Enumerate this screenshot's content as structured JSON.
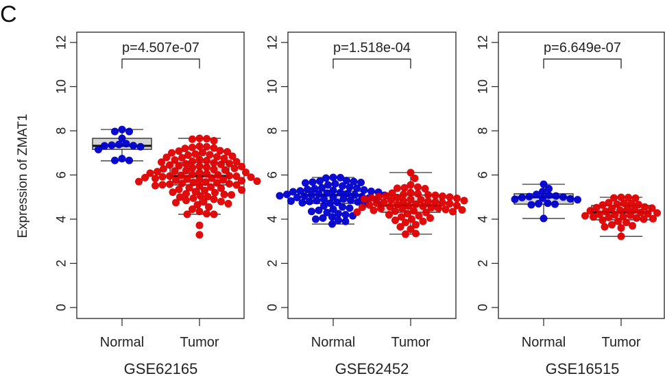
{
  "figure": {
    "panel_letter": "C",
    "ylabel": "Expression of ZMAT1"
  },
  "chart_data": [
    {
      "type": "box-beeswarm",
      "title": "",
      "dataset": "GSE62165",
      "xlabel": "GSE62165",
      "ylabel": "Expression of ZMAT1",
      "ylim": [
        0,
        12
      ],
      "yticks": [
        0,
        2,
        4,
        6,
        8,
        10,
        12
      ],
      "categories": [
        "Normal",
        "Tumor"
      ],
      "p_value_label": "p=4.507e-07",
      "groups": [
        {
          "name": "Normal",
          "color": "#0000cc",
          "box": {
            "whisker_low": 6.64,
            "q1": 7.16,
            "median": 7.32,
            "q3": 7.66,
            "whisker_high": 8.06
          },
          "values": [
            8.06,
            7.97,
            7.97,
            7.66,
            7.42,
            7.38,
            7.35,
            7.33,
            7.32,
            7.28,
            7.15,
            6.74,
            6.66,
            6.66
          ]
        },
        {
          "name": "Tumor",
          "color": "#dd0000",
          "box": {
            "whisker_low": 4.22,
            "q1": 5.55,
            "median": 5.95,
            "q3": 6.57,
            "whisker_high": 7.66
          },
          "outliers": [
            3.72,
            3.29
          ],
          "values": [
            7.66,
            7.64,
            7.62,
            7.55,
            7.3,
            7.28,
            7.25,
            7.22,
            7.2,
            7.1,
            7.08,
            7.05,
            7.02,
            7.0,
            6.95,
            6.92,
            6.9,
            6.85,
            6.82,
            6.8,
            6.78,
            6.75,
            6.7,
            6.68,
            6.65,
            6.62,
            6.6,
            6.58,
            6.55,
            6.52,
            6.5,
            6.48,
            6.45,
            6.42,
            6.4,
            6.38,
            6.35,
            6.32,
            6.3,
            6.28,
            6.25,
            6.22,
            6.2,
            6.18,
            6.15,
            6.12,
            6.1,
            6.08,
            6.05,
            6.02,
            6.0,
            5.98,
            5.96,
            5.95,
            5.94,
            5.92,
            5.9,
            5.88,
            5.86,
            5.84,
            5.82,
            5.8,
            5.78,
            5.76,
            5.74,
            5.72,
            5.7,
            5.68,
            5.66,
            5.64,
            5.62,
            5.6,
            5.58,
            5.56,
            5.55,
            5.52,
            5.5,
            5.45,
            5.42,
            5.4,
            5.35,
            5.32,
            5.3,
            5.25,
            5.22,
            5.2,
            5.15,
            5.12,
            5.1,
            5.05,
            5.02,
            5.0,
            4.95,
            4.9,
            4.85,
            4.8,
            4.78,
            4.75,
            4.7,
            4.65,
            4.55,
            4.45,
            4.35,
            4.25,
            4.22,
            4.22,
            3.72,
            3.29
          ]
        }
      ]
    },
    {
      "type": "box-beeswarm",
      "title": "",
      "dataset": "GSE62452",
      "xlabel": "GSE62452",
      "ylabel": "",
      "ylim": [
        0,
        12
      ],
      "yticks": [
        0,
        2,
        4,
        6,
        8,
        10,
        12
      ],
      "categories": [
        "Normal",
        "Tumor"
      ],
      "p_value_label": "p=1.518e-04",
      "groups": [
        {
          "name": "Normal",
          "color": "#0000cc",
          "box": {
            "whisker_low": 3.78,
            "q1": 4.71,
            "median": 5.09,
            "q3": 5.27,
            "whisker_high": 5.89
          },
          "values": [
            5.89,
            5.88,
            5.86,
            5.75,
            5.72,
            5.7,
            5.68,
            5.66,
            5.64,
            5.6,
            5.55,
            5.5,
            5.45,
            5.42,
            5.4,
            5.38,
            5.35,
            5.32,
            5.3,
            5.28,
            5.26,
            5.24,
            5.22,
            5.2,
            5.18,
            5.16,
            5.14,
            5.12,
            5.1,
            5.09,
            5.08,
            5.06,
            5.04,
            5.02,
            5.0,
            4.98,
            4.96,
            4.94,
            4.92,
            4.9,
            4.88,
            4.86,
            4.84,
            4.82,
            4.8,
            4.78,
            4.76,
            4.74,
            4.72,
            4.7,
            4.65,
            4.6,
            4.55,
            4.5,
            4.45,
            4.4,
            4.35,
            4.3,
            4.25,
            4.2,
            4.15,
            4.1,
            4.05,
            4.0,
            3.95,
            3.9,
            3.78
          ]
        },
        {
          "name": "Tumor",
          "color": "#dd0000",
          "box": {
            "whisker_low": 3.32,
            "q1": 4.31,
            "median": 4.62,
            "q3": 5.09,
            "whisker_high": 6.11
          },
          "values": [
            6.11,
            5.85,
            5.55,
            5.45,
            5.42,
            5.4,
            5.38,
            5.2,
            5.18,
            5.15,
            5.12,
            5.1,
            5.08,
            5.06,
            5.04,
            5.02,
            5.0,
            4.98,
            4.96,
            4.94,
            4.92,
            4.9,
            4.88,
            4.86,
            4.84,
            4.82,
            4.8,
            4.78,
            4.76,
            4.74,
            4.72,
            4.7,
            4.68,
            4.66,
            4.64,
            4.62,
            4.6,
            4.58,
            4.56,
            4.54,
            4.52,
            4.5,
            4.48,
            4.46,
            4.44,
            4.42,
            4.4,
            4.38,
            4.36,
            4.34,
            4.32,
            4.3,
            4.25,
            4.2,
            4.15,
            4.1,
            4.05,
            4.0,
            3.95,
            3.9,
            3.85,
            3.75,
            3.65,
            3.55,
            3.35,
            3.32
          ]
        }
      ]
    },
    {
      "type": "box-beeswarm",
      "title": "",
      "dataset": "GSE16515",
      "xlabel": "GSE16515",
      "ylabel": "",
      "ylim": [
        0,
        12
      ],
      "yticks": [
        0,
        2,
        4,
        6,
        8,
        10,
        12
      ],
      "categories": [
        "Normal",
        "Tumor"
      ],
      "p_value_label": "p=6.649e-07",
      "groups": [
        {
          "name": "Normal",
          "color": "#0000cc",
          "box": {
            "whisker_low": 4.03,
            "q1": 4.68,
            "median": 4.99,
            "q3": 5.15,
            "whisker_high": 5.58
          },
          "values": [
            5.58,
            5.38,
            5.25,
            5.12,
            5.08,
            5.05,
            5.02,
            5.0,
            4.98,
            4.95,
            4.92,
            4.9,
            4.88,
            4.72,
            4.7,
            4.68,
            4.65,
            4.03
          ]
        },
        {
          "name": "Tumor",
          "color": "#dd0000",
          "box": {
            "whisker_low": 3.22,
            "q1": 3.97,
            "median": 4.31,
            "q3": 4.62,
            "whisker_high": 4.99
          },
          "values": [
            4.99,
            4.98,
            4.96,
            4.95,
            4.75,
            4.72,
            4.7,
            4.68,
            4.66,
            4.64,
            4.55,
            4.52,
            4.5,
            4.48,
            4.45,
            4.42,
            4.4,
            4.38,
            4.35,
            4.3,
            4.28,
            4.25,
            4.22,
            4.2,
            4.18,
            4.15,
            4.12,
            4.1,
            4.08,
            4.05,
            4.02,
            4.0,
            3.95,
            3.9,
            3.85,
            3.75,
            3.7,
            3.65,
            3.6,
            3.22
          ]
        }
      ]
    }
  ]
}
